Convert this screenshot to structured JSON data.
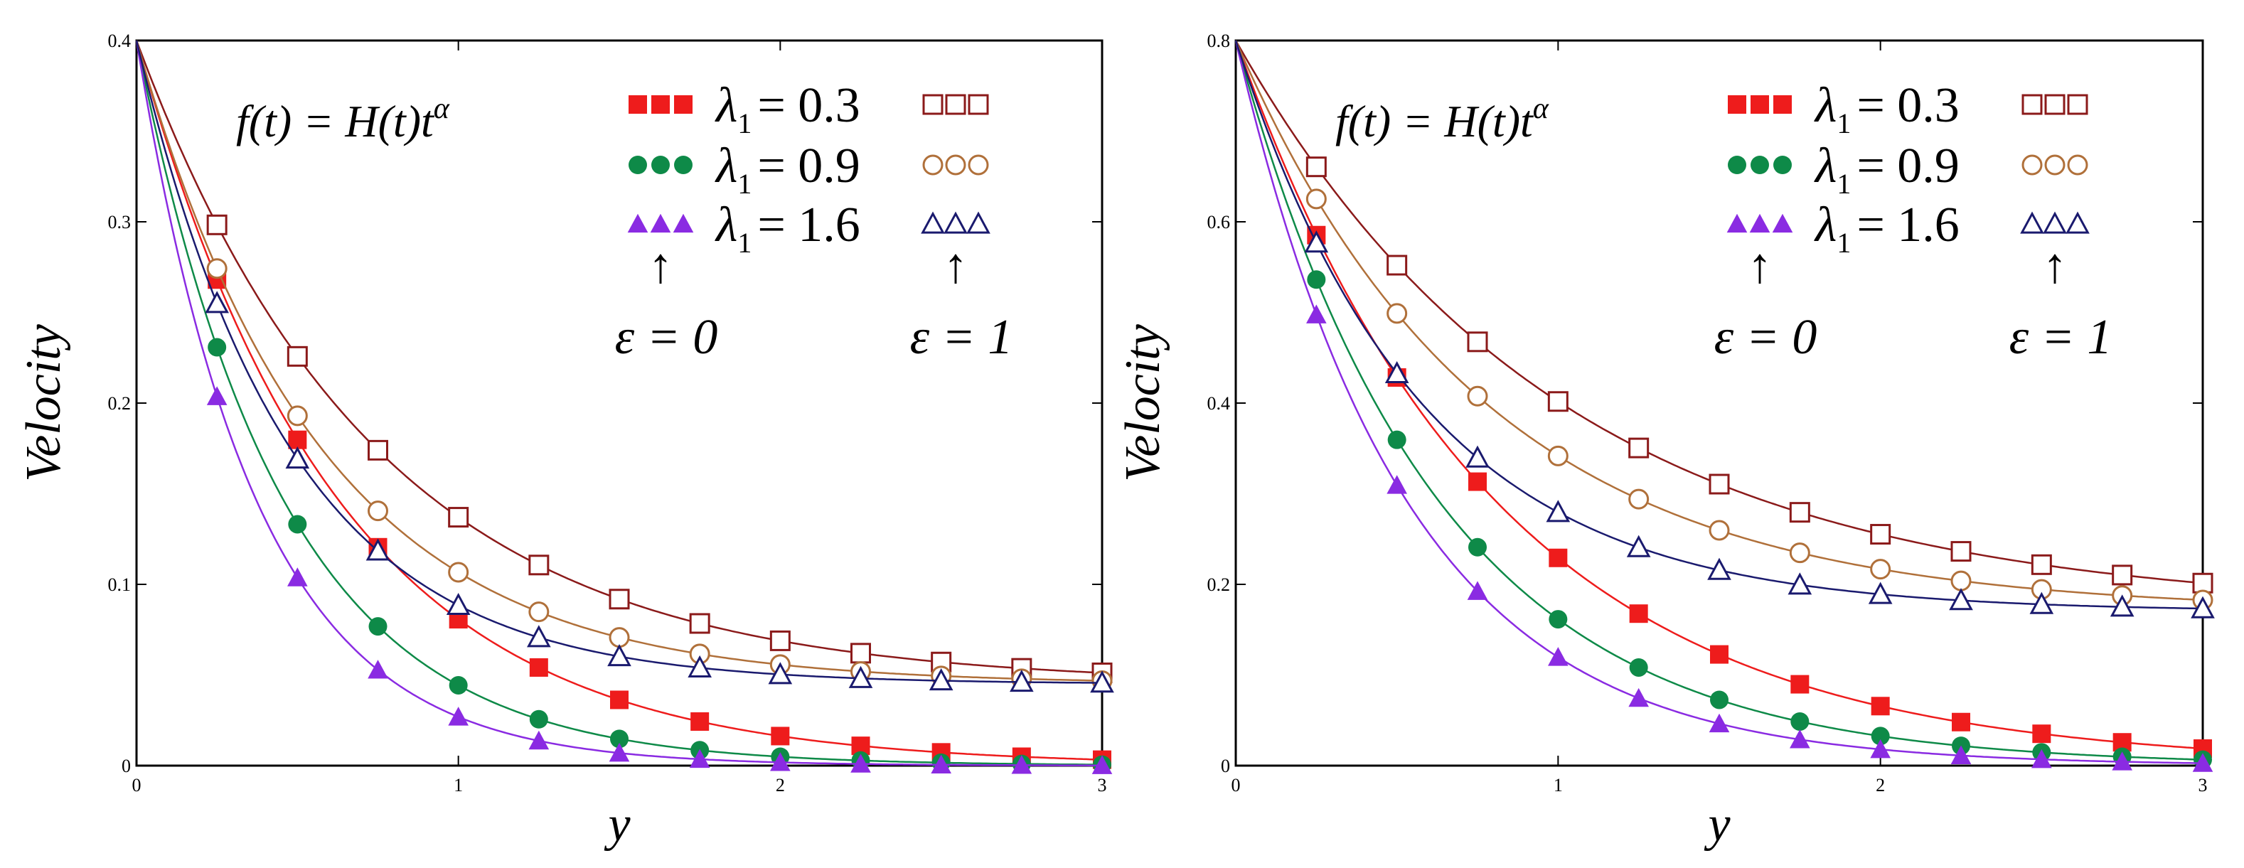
{
  "colors": {
    "red": "#ee1c1c",
    "green": "#0e8a48",
    "purple": "#8a2be2",
    "dark_red": "#8b1a1a",
    "brown": "#b0703a",
    "navy": "#1a1a6e",
    "axis": "#000000"
  },
  "chart_data": [
    {
      "type": "line",
      "xlabel": "y",
      "ylabel": "Velocity",
      "formula": {
        "lhs": "f(t) = H(t)t",
        "sup": "α"
      },
      "xlim": [
        0,
        3
      ],
      "ylim": [
        0,
        0.4
      ],
      "xticks": [
        "0",
        "1",
        "2",
        "3"
      ],
      "yticks": [
        "0",
        "0.1",
        "0.2",
        "0.3",
        "0.4"
      ],
      "marker_x": [
        0.25,
        0.5,
        0.75,
        1.0,
        1.25,
        1.5,
        1.75,
        2.0,
        2.25,
        2.5,
        2.75,
        3.0
      ],
      "legend": {
        "entries": [
          {
            "symbol": "λ",
            "sub": "1",
            "value": "= 0.3"
          },
          {
            "symbol": "λ",
            "sub": "1",
            "value": "= 0.9"
          },
          {
            "symbol": "λ",
            "sub": "1",
            "value": "= 1.6"
          }
        ],
        "eps_left": "ε = 0",
        "eps_right": "ε = 1",
        "arrow": "↑"
      },
      "series": [
        {
          "name": "λ1 = 0.3, ε = 0",
          "color_key": "red",
          "marker": "square-filled",
          "y0": 0.4,
          "yinf": 0.0,
          "k": 1.6
        },
        {
          "name": "λ1 = 0.9, ε = 0",
          "color_key": "green",
          "marker": "circle-filled",
          "y0": 0.4,
          "yinf": 0.0,
          "k": 2.2
        },
        {
          "name": "λ1 = 1.6, ε = 0",
          "color_key": "purple",
          "marker": "triangle-filled",
          "y0": 0.4,
          "yinf": 0.0,
          "k": 2.7
        },
        {
          "name": "λ1 = 0.3, ε = 1",
          "color_key": "dark_red",
          "marker": "square-open",
          "y0": 0.4,
          "yinf": 0.045,
          "k": 1.35
        },
        {
          "name": "λ1 = 0.9, ε = 1",
          "color_key": "brown",
          "marker": "circle-open",
          "y0": 0.4,
          "yinf": 0.045,
          "k": 1.75
        },
        {
          "name": "λ1 = 1.6, ε = 1",
          "color_key": "navy",
          "marker": "triangle-open",
          "y0": 0.4,
          "yinf": 0.045,
          "k": 2.1
        }
      ]
    },
    {
      "type": "line",
      "xlabel": "y",
      "ylabel": "Velocity",
      "formula": {
        "lhs": "f(t) = H(t)t",
        "sup": "α"
      },
      "xlim": [
        0,
        3
      ],
      "ylim": [
        0,
        0.8
      ],
      "xticks": [
        "0",
        "1",
        "2",
        "3"
      ],
      "yticks": [
        "0",
        "0.2",
        "0.4",
        "0.6",
        "0.8"
      ],
      "marker_x": [
        0.25,
        0.5,
        0.75,
        1.0,
        1.25,
        1.5,
        1.75,
        2.0,
        2.25,
        2.5,
        2.75,
        3.0
      ],
      "legend": {
        "entries": [
          {
            "symbol": "λ",
            "sub": "1",
            "value": "= 0.3"
          },
          {
            "symbol": "λ",
            "sub": "1",
            "value": "= 0.9"
          },
          {
            "symbol": "λ",
            "sub": "1",
            "value": "= 1.6"
          }
        ],
        "eps_left": "ε = 0",
        "eps_right": "ε = 1",
        "arrow": "↑"
      },
      "series": [
        {
          "name": "λ1 = 0.3, ε = 0",
          "color_key": "red",
          "marker": "square-filled",
          "y0": 0.8,
          "yinf": 0.0,
          "k": 1.25
        },
        {
          "name": "λ1 = 0.9, ε = 0",
          "color_key": "green",
          "marker": "circle-filled",
          "y0": 0.8,
          "yinf": 0.0,
          "k": 1.6
        },
        {
          "name": "λ1 = 1.6, ε = 0",
          "color_key": "purple",
          "marker": "triangle-filled",
          "y0": 0.8,
          "yinf": 0.0,
          "k": 1.9
        },
        {
          "name": "λ1 = 0.3, ε = 1",
          "color_key": "dark_red",
          "marker": "square-open",
          "y0": 0.8,
          "yinf": 0.17,
          "k": 1.0
        },
        {
          "name": "λ1 = 0.9, ε = 1",
          "color_key": "brown",
          "marker": "circle-open",
          "y0": 0.8,
          "yinf": 0.17,
          "k": 1.3
        },
        {
          "name": "λ1 = 1.6, ε = 1",
          "color_key": "navy",
          "marker": "triangle-open",
          "y0": 0.8,
          "yinf": 0.17,
          "k": 1.75
        }
      ]
    }
  ]
}
